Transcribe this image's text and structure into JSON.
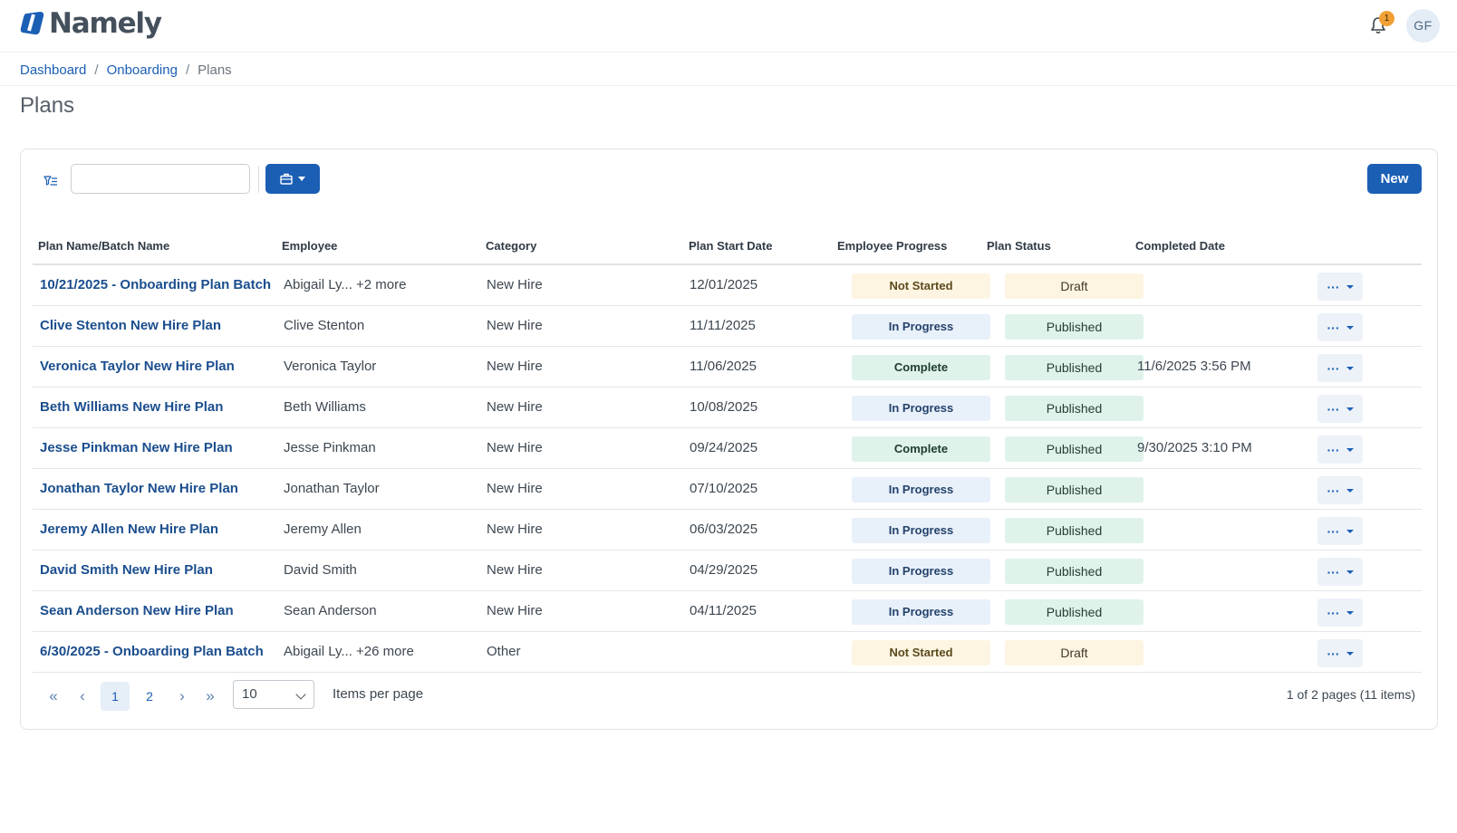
{
  "app": {
    "brand": "Namely"
  },
  "header": {
    "notification_count": "1",
    "avatar_initials": "GF"
  },
  "breadcrumb": {
    "items": [
      "Dashboard",
      "Onboarding"
    ],
    "current": "Plans",
    "separator": "/"
  },
  "page": {
    "title": "Plans"
  },
  "toolbar": {
    "search_value": "",
    "new_label": "New"
  },
  "table": {
    "columns": [
      "Plan Name/Batch Name",
      "Employee",
      "Category",
      "Plan Start Date",
      "Employee Progress",
      "Plan Status",
      "Completed Date"
    ],
    "rows": [
      {
        "plan": "10/21/2025 - Onboarding Plan Batch",
        "employee": "Abigail Ly... +2 more",
        "category": "New Hire",
        "start": "12/01/2025",
        "progress": "Not Started",
        "status": "Draft",
        "completed": ""
      },
      {
        "plan": "Clive Stenton New Hire Plan",
        "employee": "Clive Stenton",
        "category": "New Hire",
        "start": "11/11/2025",
        "progress": "In Progress",
        "status": "Published",
        "completed": ""
      },
      {
        "plan": "Veronica Taylor New Hire Plan",
        "employee": "Veronica Taylor",
        "category": "New Hire",
        "start": "11/06/2025",
        "progress": "Complete",
        "status": "Published",
        "completed": "11/6/2025 3:56 PM"
      },
      {
        "plan": "Beth Williams New Hire Plan",
        "employee": "Beth Williams",
        "category": "New Hire",
        "start": "10/08/2025",
        "progress": "In Progress",
        "status": "Published",
        "completed": ""
      },
      {
        "plan": "Jesse Pinkman New Hire Plan",
        "employee": "Jesse Pinkman",
        "category": "New Hire",
        "start": "09/24/2025",
        "progress": "Complete",
        "status": "Published",
        "completed": "9/30/2025 3:10 PM"
      },
      {
        "plan": "Jonathan Taylor New Hire Plan",
        "employee": "Jonathan Taylor",
        "category": "New Hire",
        "start": "07/10/2025",
        "progress": "In Progress",
        "status": "Published",
        "completed": ""
      },
      {
        "plan": "Jeremy Allen New Hire Plan",
        "employee": "Jeremy Allen",
        "category": "New Hire",
        "start": "06/03/2025",
        "progress": "In Progress",
        "status": "Published",
        "completed": ""
      },
      {
        "plan": "David Smith New Hire Plan",
        "employee": "David Smith",
        "category": "New Hire",
        "start": "04/29/2025",
        "progress": "In Progress",
        "status": "Published",
        "completed": ""
      },
      {
        "plan": "Sean Anderson New Hire Plan",
        "employee": "Sean Anderson",
        "category": "New Hire",
        "start": "04/11/2025",
        "progress": "In Progress",
        "status": "Published",
        "completed": ""
      },
      {
        "plan": "6/30/2025 - Onboarding Plan Batch",
        "employee": "Abigail Ly... +26 more",
        "category": "Other",
        "start": "",
        "progress": "Not Started",
        "status": "Draft",
        "completed": ""
      }
    ]
  },
  "pagination": {
    "first": "«",
    "prev": "‹",
    "next": "›",
    "last": "»",
    "pages": [
      "1",
      "2"
    ],
    "active_page": "1",
    "per_page": "10",
    "per_page_label": "Items per page",
    "info": "1 of 2 pages (11 items)"
  },
  "icons": {
    "logo": "namely-logo-icon",
    "bell": "bell-icon",
    "filter": "filter-icon",
    "briefcase": "briefcase-icon",
    "menu": "more-actions-icon",
    "caret": "caret-down-icon"
  },
  "colors": {
    "primary": "#1b5fb5",
    "link": "#1b4e8e",
    "badge": "#f0a035",
    "not_started_bg": "#fdf5e1",
    "in_progress_bg": "#e8f0fa",
    "complete_bg": "#dff3ea"
  }
}
